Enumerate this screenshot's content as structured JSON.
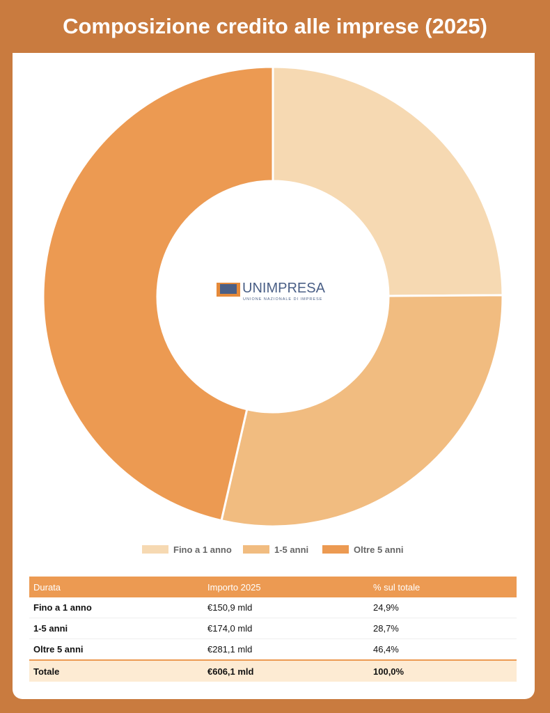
{
  "chart_data": {
    "type": "pie",
    "donut": true,
    "title": "Composizione credito alle imprese (2025)",
    "categories": [
      "Fino a 1 anno",
      "1-5 anni",
      "Oltre 5 anni"
    ],
    "values": [
      24.9,
      28.7,
      46.4
    ],
    "colors": [
      "#f6d9b2",
      "#f1bc80",
      "#ec9a52"
    ]
  },
  "logo": {
    "name": "UNIMPRESA",
    "tagline": "UNIONE NAZIONALE DI IMPRESE"
  },
  "table": {
    "columns": [
      "Durata",
      "Importo 2025",
      "% sul totale"
    ],
    "rows": [
      [
        "Fino a 1 anno",
        "€150,9 mld",
        "24,9%"
      ],
      [
        "1-5 anni",
        "€174,0 mld",
        "28,7%"
      ],
      [
        "Oltre 5 anni",
        "€281,1 mld",
        "46,4%"
      ]
    ],
    "total": [
      "Totale",
      "€606,1 mld",
      "100,0%"
    ]
  }
}
